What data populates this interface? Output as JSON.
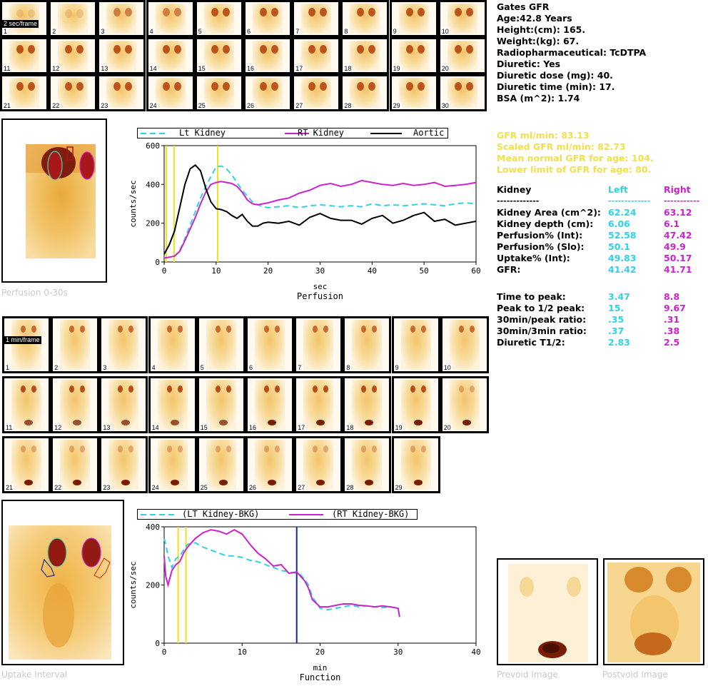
{
  "patient": {
    "title": "Gates GFR",
    "age": "Age:42.8 Years",
    "height": "Height:(cm): 165.",
    "weight": "Weight:(kg): 67.",
    "radiopharm": "Radiopharmaceutical:  TcDTPA",
    "diuretic": "Diuretic:  Yes",
    "diuretic_dose": "Diuretic dose (mg): 40.",
    "diuretic_time": "Diuretic time (min): 17.",
    "bsa": "BSA (m^2): 1.74"
  },
  "gfr": {
    "gfr": "GFR ml/min: 83.13",
    "scaled": "Scaled GFR ml/min: 82.73",
    "mean_normal": "Mean normal GFR for age: 104.",
    "lower_limit": "Lower limit of GFR for age: 80."
  },
  "table": {
    "header": {
      "label": "Kidney",
      "left": "Left",
      "right": "Right"
    },
    "rule_label": "-------------",
    "rule_left": "-------------",
    "rule_right": "-----------",
    "rows": [
      {
        "label": "Kidney Area (cm^2):",
        "left": "62.24",
        "right": "63.12"
      },
      {
        "label": "Kidney depth (cm):",
        "left": "6.06",
        "right": "6.1"
      },
      {
        "label": "Perfusion% (Int):",
        "left": "52.58",
        "right": "47.42"
      },
      {
        "label": "Perfusion% (Slo):",
        "left": "50.1",
        "right": "49.9"
      },
      {
        "label": "Uptake% (Int):",
        "left": "49.83",
        "right": "50.17"
      },
      {
        "label": "GFR:",
        "left": "41.42",
        "right": "41.71"
      }
    ],
    "rows2": [
      {
        "label": "Time to peak:",
        "left": "3.47",
        "right": "8.8"
      },
      {
        "label": "Peak to 1/2 peak:",
        "left": "15.",
        "right": "9.67"
      },
      {
        "label": "30min/peak ratio:",
        "left": ".35",
        "right": ".31"
      },
      {
        "label": "30min/3min ratio:",
        "left": ".37",
        "right": ".38"
      },
      {
        "label": "Diuretic T1/2:",
        "left": "2.83",
        "right": "2.5"
      }
    ]
  },
  "frames_top": {
    "tag": "2 sec/frame",
    "numbers": [
      "1",
      "2",
      "3",
      "4",
      "5",
      "6",
      "7",
      "8",
      "9",
      "10",
      "11",
      "12",
      "13",
      "14",
      "15",
      "16",
      "17",
      "18",
      "19",
      "20",
      "21",
      "22",
      "23",
      "24",
      "25",
      "26",
      "27",
      "28",
      "29",
      "30"
    ]
  },
  "frames_mid": {
    "tag": "1 min/frame",
    "numbers": [
      "1",
      "2",
      "3",
      "4",
      "5",
      "6",
      "7",
      "8",
      "9",
      "10",
      "11",
      "12",
      "13",
      "14",
      "15",
      "16",
      "17",
      "18",
      "19",
      "20",
      "21",
      "22",
      "23",
      "24",
      "25",
      "26",
      "27",
      "28",
      "29"
    ]
  },
  "captions": {
    "perfusion_img": "Perfusion 0-30s",
    "uptake_img": "Uptake Interval",
    "prevoid": "Prevoid Image",
    "postvoid": "Postvoid Image"
  },
  "colors": {
    "cyan": "#2fd2e3",
    "magenta": "#cc22cc",
    "aortic": "#000000",
    "marker_yellow": "#f0e020",
    "marker_blue": "#1a2a8a",
    "gfr_text": "#f1e04a"
  },
  "chart_data": [
    {
      "type": "line",
      "title": "",
      "xlabel": "sec",
      "subtitle": "Perfusion",
      "ylabel": "counts/sec",
      "xlim": [
        0,
        60
      ],
      "ylim": [
        0,
        600
      ],
      "xticks": [
        "0",
        "10",
        "20",
        "30",
        "40",
        "50",
        "60"
      ],
      "yticks": [
        "0",
        "200",
        "400",
        "600"
      ],
      "markers_yellow": [
        0.4,
        1.9,
        10.3
      ],
      "series": [
        {
          "name": "Lt Kidney",
          "color": "#2fd2e3",
          "dash": true,
          "x": [
            0,
            1,
            2,
            3,
            4,
            5,
            6,
            7,
            8,
            9,
            10,
            11,
            12,
            13,
            14,
            15,
            16,
            17,
            18,
            19,
            20,
            22,
            24,
            26,
            28,
            30,
            32,
            34,
            36,
            38,
            40,
            42,
            44,
            46,
            48,
            50,
            52,
            54,
            56,
            58,
            60
          ],
          "y": [
            20,
            25,
            30,
            60,
            120,
            190,
            260,
            330,
            390,
            440,
            490,
            495,
            480,
            450,
            410,
            370,
            340,
            310,
            295,
            285,
            280,
            285,
            290,
            280,
            290,
            295,
            290,
            285,
            290,
            285,
            300,
            290,
            295,
            290,
            295,
            300,
            295,
            290,
            300,
            305,
            300
          ]
        },
        {
          "name": "RT Kidney",
          "color": "#cc22cc",
          "dash": false,
          "x": [
            0,
            1,
            2,
            3,
            4,
            5,
            6,
            7,
            8,
            9,
            10,
            11,
            12,
            13,
            14,
            15,
            16,
            17,
            18,
            19,
            20,
            22,
            24,
            26,
            28,
            30,
            32,
            34,
            36,
            38,
            40,
            42,
            44,
            46,
            48,
            50,
            52,
            54,
            56,
            58,
            60
          ],
          "y": [
            20,
            25,
            30,
            55,
            110,
            170,
            230,
            300,
            360,
            400,
            410,
            415,
            410,
            405,
            390,
            360,
            320,
            300,
            295,
            300,
            305,
            320,
            330,
            355,
            370,
            395,
            405,
            390,
            400,
            420,
            410,
            400,
            395,
            405,
            395,
            400,
            410,
            390,
            395,
            400,
            410
          ]
        },
        {
          "name": "Aortic",
          "color": "#000000",
          "dash": false,
          "x": [
            0,
            1,
            2,
            3,
            4,
            5,
            6,
            7,
            8,
            9,
            10,
            11,
            12,
            13,
            14,
            15,
            16,
            17,
            18,
            19,
            20,
            22,
            24,
            26,
            28,
            30,
            32,
            34,
            36,
            38,
            40,
            42,
            44,
            46,
            48,
            50,
            52,
            54,
            56,
            58,
            60
          ],
          "y": [
            40,
            90,
            160,
            280,
            400,
            480,
            500,
            470,
            380,
            310,
            275,
            270,
            260,
            240,
            225,
            245,
            210,
            185,
            185,
            200,
            205,
            200,
            210,
            190,
            230,
            250,
            225,
            215,
            215,
            195,
            225,
            240,
            200,
            215,
            240,
            255,
            210,
            220,
            190,
            200,
            210
          ]
        }
      ]
    },
    {
      "type": "line",
      "title": "",
      "xlabel": "min",
      "subtitle": "Function",
      "ylabel": "counts/sec",
      "xlim": [
        0,
        40
      ],
      "ylim": [
        0,
        400
      ],
      "xticks": [
        "0",
        "10",
        "20",
        "30",
        "40"
      ],
      "yticks": [
        "0",
        "200",
        "400"
      ],
      "markers_yellow": [
        1.8,
        2.8
      ],
      "marker_blue": [
        17
      ],
      "series": [
        {
          "name": "(LT Kidney-BKG)",
          "color": "#2fd2e3",
          "dash": true,
          "x": [
            0,
            0.2,
            0.5,
            1,
            1.5,
            2,
            2.5,
            3,
            4,
            5,
            6,
            7,
            8,
            9,
            10,
            11,
            12,
            13,
            14,
            15,
            16,
            17,
            17.5,
            18,
            18.5,
            19,
            20,
            21,
            22,
            23,
            24,
            25,
            26,
            27,
            28,
            29,
            30
          ],
          "y": [
            360,
            340,
            300,
            260,
            290,
            300,
            320,
            340,
            345,
            330,
            320,
            310,
            300,
            300,
            295,
            285,
            280,
            270,
            260,
            250,
            245,
            240,
            235,
            220,
            200,
            160,
            120,
            115,
            120,
            125,
            130,
            125,
            128,
            125,
            122,
            125,
            120
          ]
        },
        {
          "name": "(RT Kidney-BKG)",
          "color": "#cc22cc",
          "dash": false,
          "x": [
            0,
            0.2,
            0.5,
            1,
            1.5,
            2,
            2.5,
            3,
            4,
            5,
            6,
            7,
            8,
            9,
            10,
            11,
            12,
            13,
            14,
            15,
            16,
            17,
            17.5,
            18,
            18.5,
            19,
            20,
            21,
            22,
            23,
            24,
            25,
            26,
            27,
            28,
            29,
            30,
            30.2
          ],
          "y": [
            300,
            230,
            200,
            250,
            270,
            280,
            310,
            330,
            360,
            380,
            390,
            385,
            375,
            390,
            375,
            340,
            310,
            290,
            265,
            270,
            240,
            245,
            230,
            215,
            190,
            150,
            125,
            125,
            130,
            135,
            135,
            130,
            128,
            125,
            128,
            125,
            120,
            90
          ]
        }
      ]
    }
  ]
}
